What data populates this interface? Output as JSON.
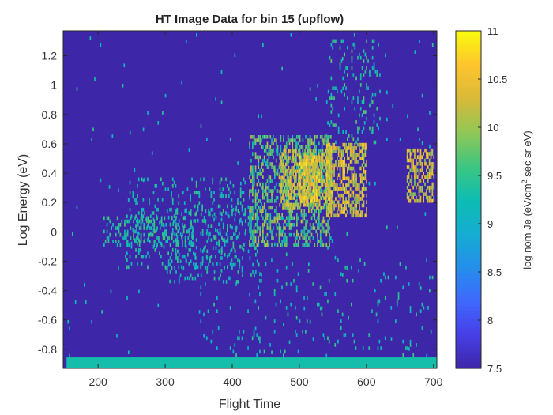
{
  "chart_data": {
    "type": "heatmap",
    "title": "HT Image Data for bin 15 (upflow)",
    "xlabel": "Flight Time",
    "ylabel": "Log Energy (eV)",
    "colorbar_label": "log nom Je (eV/cm² sec sr eV)",
    "colorbar_label_parts": [
      "log nom Je (eV/cm",
      "2",
      " sec sr eV)"
    ],
    "xlim": [
      148,
      705
    ],
    "ylim": [
      -0.93,
      1.37
    ],
    "clim": [
      7.5,
      11
    ],
    "x_ticks": [
      200,
      300,
      400,
      500,
      600,
      700
    ],
    "x_tick_labels": [
      "200",
      "300",
      "400",
      "500",
      "600",
      "700"
    ],
    "y_ticks": [
      -0.8,
      -0.6,
      -0.4,
      -0.2,
      0,
      0.2,
      0.4,
      0.6,
      0.8,
      1,
      1.2
    ],
    "y_tick_labels": [
      "-0.8",
      "-0.6",
      "-0.4",
      "-0.2",
      "0",
      "0.2",
      "0.4",
      "0.6",
      "0.8",
      "1",
      "1.2"
    ],
    "colorbar_ticks": [
      7.5,
      8,
      8.5,
      9,
      9.5,
      10,
      10.5,
      11
    ],
    "colorbar_tick_labels": [
      "7.5",
      "8",
      "8.5",
      "9",
      "9.5",
      "10",
      "10.5",
      "11"
    ],
    "colormap": "parula",
    "background_value": 7.5,
    "baseline_band": {
      "x_range": [
        153,
        705
      ],
      "y_range": [
        -0.925,
        -0.855
      ],
      "value": 9.3
    },
    "regions": [
      {
        "x_range": [
          208,
          340
        ],
        "y_range": [
          -0.1,
          0.1
        ],
        "density": 0.35,
        "value_range": [
          9.1,
          9.7
        ]
      },
      {
        "x_range": [
          240,
          420
        ],
        "y_range": [
          -0.25,
          0.35
        ],
        "density": 0.12,
        "value_range": [
          9.0,
          9.6
        ]
      },
      {
        "x_range": [
          300,
          440
        ],
        "y_range": [
          -0.35,
          0.15
        ],
        "density": 0.15,
        "value_range": [
          9.0,
          9.6
        ]
      },
      {
        "x_range": [
          425,
          548
        ],
        "y_range": [
          -0.1,
          0.65
        ],
        "density": 0.45,
        "value_range": [
          9.2,
          10.2
        ]
      },
      {
        "x_range": [
          470,
          548
        ],
        "y_range": [
          0.15,
          0.55
        ],
        "density": 0.6,
        "value_range": [
          9.7,
          10.6
        ]
      },
      {
        "x_range": [
          540,
          600
        ],
        "y_range": [
          0.1,
          0.6
        ],
        "density": 0.6,
        "value_range": [
          9.8,
          10.8
        ]
      },
      {
        "x_range": [
          500,
          530
        ],
        "y_range": [
          0.2,
          0.5
        ],
        "density": 0.7,
        "value_range": [
          10.0,
          10.9
        ]
      },
      {
        "x_range": [
          660,
          700
        ],
        "y_range": [
          0.2,
          0.55
        ],
        "density": 0.6,
        "value_range": [
          9.8,
          10.7
        ]
      },
      {
        "x_range": [
          540,
          620
        ],
        "y_range": [
          0.6,
          1.3
        ],
        "density": 0.12,
        "value_range": [
          9.0,
          9.8
        ]
      },
      {
        "x_range": [
          350,
          700
        ],
        "y_range": [
          -0.85,
          -0.2
        ],
        "density": 0.04,
        "value_range": [
          8.9,
          9.6
        ]
      },
      {
        "x_range": [
          150,
          700
        ],
        "y_range": [
          -0.9,
          1.35
        ],
        "density": 0.006,
        "value_range": [
          8.9,
          9.5
        ]
      }
    ]
  }
}
